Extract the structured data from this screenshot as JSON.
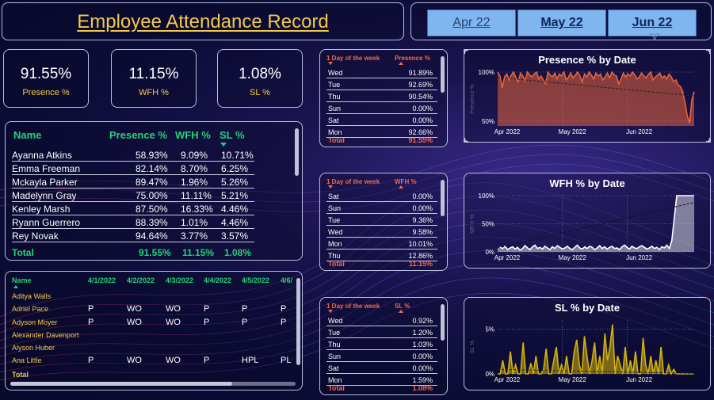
{
  "header": {
    "title": "Employee Attendance Record",
    "months": [
      "Apr 22",
      "May 22",
      "Jun 22"
    ]
  },
  "kpis": [
    {
      "value": "91.55%",
      "label": "Presence %"
    },
    {
      "value": "11.15%",
      "label": "WFH %"
    },
    {
      "value": "1.08%",
      "label": "SL %"
    }
  ],
  "summary_table": {
    "headers": [
      "Name",
      "Presence %",
      "WFH %",
      "SL %"
    ],
    "rows": [
      [
        "Ayanna Atkins",
        "58.93%",
        "9.09%",
        "10.71%"
      ],
      [
        "Emma Freeman",
        "82.14%",
        "8.70%",
        "6.25%"
      ],
      [
        "Mckayla Parker",
        "89.47%",
        "1.96%",
        "5.26%"
      ],
      [
        "Madelynn Gray",
        "75.00%",
        "11.11%",
        "5.21%"
      ],
      [
        "Kenley Marsh",
        "87.50%",
        "16.33%",
        "4.46%"
      ],
      [
        "Ryann Guerrero",
        "88.39%",
        "1.01%",
        "4.46%"
      ],
      [
        "Rey Novak",
        "94.64%",
        "3.77%",
        "3.57%"
      ]
    ],
    "total": [
      "Total",
      "91.55%",
      "11.15%",
      "1.08%"
    ]
  },
  "matrix": {
    "name_header": "Name",
    "dates": [
      "4/1/2022",
      "4/2/2022",
      "4/3/2022",
      "4/4/2022",
      "4/5/2022",
      "4/6/"
    ],
    "rows": [
      {
        "name": "Aditya Walls",
        "cells": [
          "",
          "",
          "",
          "",
          "",
          ""
        ]
      },
      {
        "name": "Adriel Pace",
        "cells": [
          "P",
          "WO",
          "WO",
          "P",
          "P",
          "P"
        ]
      },
      {
        "name": "Adyson Moyer",
        "cells": [
          "P",
          "WO",
          "WO",
          "P",
          "P",
          "P"
        ]
      },
      {
        "name": "Alexander Davenport",
        "cells": [
          "",
          "",
          "",
          "",
          "",
          ""
        ]
      },
      {
        "name": "Alyson Huber",
        "cells": [
          "",
          "",
          "",
          "",
          "",
          ""
        ]
      },
      {
        "name": "Ana Little",
        "cells": [
          "P",
          "WO",
          "WO",
          "P",
          "HPL",
          "PL"
        ]
      }
    ],
    "total_label": "Total"
  },
  "dow_presence": {
    "header_day": "1 Day of the week",
    "header_metric": "Presence %",
    "rows": [
      [
        "Wed",
        "91.89%"
      ],
      [
        "Tue",
        "92.69%"
      ],
      [
        "Thu",
        "90.54%"
      ],
      [
        "Sun",
        "0.00%"
      ],
      [
        "Sat",
        "0.00%"
      ],
      [
        "Mon",
        "92.66%"
      ]
    ],
    "total": [
      "Total",
      "91.55%"
    ]
  },
  "dow_wfh": {
    "header_day": "1 Day of the week",
    "header_metric": "WFH %",
    "rows": [
      [
        "Sat",
        "0.00%"
      ],
      [
        "Sun",
        "0.00%"
      ],
      [
        "Tue",
        "9.36%"
      ],
      [
        "Wed",
        "9.58%"
      ],
      [
        "Mon",
        "10.01%"
      ],
      [
        "Thu",
        "12.86%"
      ]
    ],
    "total": [
      "Total",
      "11.15%"
    ]
  },
  "dow_sl": {
    "header_day": "1 Day of the week",
    "header_metric": "SL %",
    "rows": [
      [
        "Wed",
        "0.92%"
      ],
      [
        "Tue",
        "1.20%"
      ],
      [
        "Thu",
        "1.03%"
      ],
      [
        "Sun",
        "0.00%"
      ],
      [
        "Sat",
        "0.00%"
      ],
      [
        "Mon",
        "1.59%"
      ]
    ],
    "total": [
      "Total",
      "1.08%"
    ]
  },
  "chart_data": [
    {
      "type": "area",
      "title": "Presence % by Date",
      "ylabel": "Presence %",
      "x_ticks": [
        "Apr 2022",
        "May 2022",
        "Jun 2022"
      ],
      "y_ticks": [
        "100%",
        "50%"
      ],
      "ylim": [
        45,
        100
      ],
      "color": "#e8643a",
      "trend": true,
      "values": [
        100,
        96,
        84,
        95,
        98,
        92,
        97,
        100,
        94,
        90,
        99,
        96,
        91,
        100,
        97,
        95,
        98,
        100,
        93,
        96,
        92,
        88,
        100,
        97,
        95,
        99,
        93,
        98,
        96,
        100,
        92,
        95,
        99,
        94,
        97,
        100,
        96,
        90,
        98,
        95,
        100,
        97,
        93,
        99,
        96,
        98,
        92,
        95,
        99,
        94,
        100,
        97,
        96,
        88,
        93,
        99,
        95,
        98,
        96,
        100,
        97,
        93,
        95,
        99,
        96,
        94,
        98,
        100,
        92,
        95,
        97,
        99,
        94,
        96,
        93,
        98,
        95,
        90,
        92,
        87,
        85,
        80,
        68,
        55,
        48,
        72,
        80
      ]
    },
    {
      "type": "area",
      "title": "WFH % by Date",
      "ylabel": "WFH %",
      "x_ticks": [
        "Apr 2022",
        "May 2022",
        "Jun 2022"
      ],
      "y_ticks": [
        "100%",
        "50%",
        "0%"
      ],
      "ylim": [
        0,
        100
      ],
      "color": "#ffffff",
      "trend": true,
      "values": [
        5,
        8,
        6,
        10,
        4,
        7,
        9,
        5,
        8,
        3,
        6,
        11,
        7,
        4,
        9,
        12,
        6,
        8,
        5,
        10,
        7,
        4,
        9,
        6,
        11,
        8,
        5,
        7,
        10,
        6,
        4,
        8,
        12,
        7,
        5,
        9,
        6,
        10,
        8,
        4,
        7,
        11,
        6,
        9,
        5,
        8,
        10,
        6,
        7,
        4,
        9,
        12,
        8,
        5,
        10,
        7,
        6,
        9,
        11,
        8,
        5,
        7,
        10,
        6,
        8,
        4,
        9,
        7,
        12,
        6,
        20,
        60,
        100,
        100,
        100,
        100,
        100,
        100,
        100,
        100
      ]
    },
    {
      "type": "area",
      "title": "SL % by Date",
      "ylabel": "SL %",
      "x_ticks": [
        "Apr 2022",
        "May 2022",
        "Jun 2022"
      ],
      "y_ticks": [
        "5%",
        "0%"
      ],
      "ylim": [
        0,
        6
      ],
      "color": "#d4b20a",
      "trend": true,
      "values": [
        0,
        0,
        1.5,
        0,
        0,
        2.5,
        0,
        1,
        0,
        0,
        3.5,
        0,
        0,
        1.2,
        0,
        2,
        0,
        0,
        0.5,
        2.8,
        0,
        0,
        1.5,
        3,
        0,
        1,
        0,
        2,
        0,
        0,
        2.5,
        3.8,
        1,
        0,
        4.2,
        2,
        0,
        1.5,
        3.5,
        0,
        2,
        0,
        4.5,
        1.5,
        3,
        5.5,
        0,
        2,
        1,
        0,
        3,
        0,
        1.5,
        0,
        2.5,
        0,
        0,
        4,
        1,
        0,
        2,
        0,
        1.5,
        0,
        3,
        0,
        0,
        1,
        0,
        0.5,
        0,
        0,
        0,
        0,
        0,
        0,
        0,
        0
      ]
    }
  ]
}
